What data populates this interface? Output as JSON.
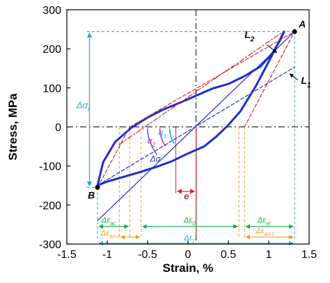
{
  "chart_data": {
    "type": "line",
    "xlabel": "Strain, %",
    "ylabel": "Stress, MPa",
    "xlim": [
      -1.5,
      1.5
    ],
    "ylim": [
      -300,
      300
    ],
    "x_ticks": [
      -1.5,
      -1,
      -0.5,
      0,
      0.5,
      1,
      1.5
    ],
    "x_tick_labels": [
      "-1.5",
      "-1",
      "-0.5",
      "0",
      "0.5",
      "1",
      "1.5"
    ],
    "y_ticks": [
      -300,
      -200,
      -100,
      0,
      100,
      200,
      300
    ],
    "y_tick_labels": [
      "-300",
      "-200",
      "-100",
      "0",
      "100",
      "200",
      "300"
    ],
    "grid": false,
    "series": [
      {
        "role": "hysteresis-upper-branch",
        "color": "#1a2fd0",
        "x": [
          -1.12,
          -1.05,
          -0.9,
          -0.7,
          -0.5,
          -0.3,
          -0.1,
          0.1,
          0.3,
          0.5,
          0.7,
          0.9,
          1.05,
          1.15,
          1.19
        ],
        "y": [
          -150,
          -90,
          -38,
          -2,
          24,
          45,
          62,
          80,
          98,
          110,
          130,
          155,
          190,
          225,
          244
        ]
      },
      {
        "role": "hysteresis-lower-branch",
        "color": "#1a2fd0",
        "x": [
          1.19,
          1.02,
          0.85,
          0.65,
          0.5,
          0.35,
          0.2,
          0.0,
          -0.2,
          -0.4,
          -0.6,
          -0.8,
          -1.0,
          -1.12
        ],
        "y": [
          244,
          175,
          108,
          40,
          5,
          -25,
          -50,
          -68,
          -88,
          -103,
          -116,
          -128,
          -140,
          -150
        ]
      },
      {
        "role": "line-A-B",
        "color": "#1a2fd0",
        "x": [
          -1.12,
          1.32
        ],
        "y": [
          -240,
          244
        ]
      },
      {
        "role": "L1",
        "color": "#1a2fd0",
        "dash": "dashed",
        "x": [
          -1.12,
          1.32
        ],
        "y": [
          -150,
          153
        ]
      },
      {
        "role": "L2",
        "color": "#d6262a",
        "dash": "dashdot",
        "x": [
          -0.85,
          1.18
        ],
        "y": [
          -45,
          244
        ]
      },
      {
        "role": "unloading-1",
        "color": "#d6262a",
        "dash": "dashed",
        "x": [
          -0.72,
          1.32
        ],
        "y": [
          0,
          244
        ]
      },
      {
        "role": "unloading-2",
        "color": "#d6262a",
        "dash": "dashed",
        "x": [
          -1.12,
          -0.72
        ],
        "y": [
          -155,
          0
        ]
      },
      {
        "role": "unloading-3",
        "color": "#d6262a",
        "dash": "dashed",
        "x": [
          0.7,
          1.32
        ],
        "y": [
          0,
          244
        ]
      }
    ],
    "points": [
      {
        "label": "A",
        "x": 1.32,
        "y": 244
      },
      {
        "label": "B",
        "x": -1.12,
        "y": -155
      }
    ],
    "annotations": {
      "L2": "L",
      "L2_sub": "2",
      "L1": "L",
      "L1_sub": "1",
      "delta_sigma_t": "Δσ",
      "delta_sigma_t_sub": "t",
      "delta_sigma": "Δσ",
      "alpha1": "α",
      "alpha1_sub": "1",
      "alpha2": "α",
      "alpha2_sub": "2",
      "e": "e",
      "eps_ac": "Δε",
      "eps_ac_sub": "ac",
      "eps_0": "Δε",
      "eps_0_sub": "0",
      "eps_el": "Δε",
      "eps_el_sub": "el",
      "eps_an_c": "Δε",
      "eps_an_c_sub": "an-c",
      "eps_an_t": "Δε",
      "eps_an_t_sub": "an-t",
      "eps_t": "Δε",
      "eps_t_sub": "t"
    },
    "colors": {
      "main": "#1a2fd0",
      "red": "#d6262a",
      "cyan": "#21a9e1",
      "orange": "#f39c1e",
      "green": "#19a84a",
      "magenta": "#d21fd0"
    }
  }
}
